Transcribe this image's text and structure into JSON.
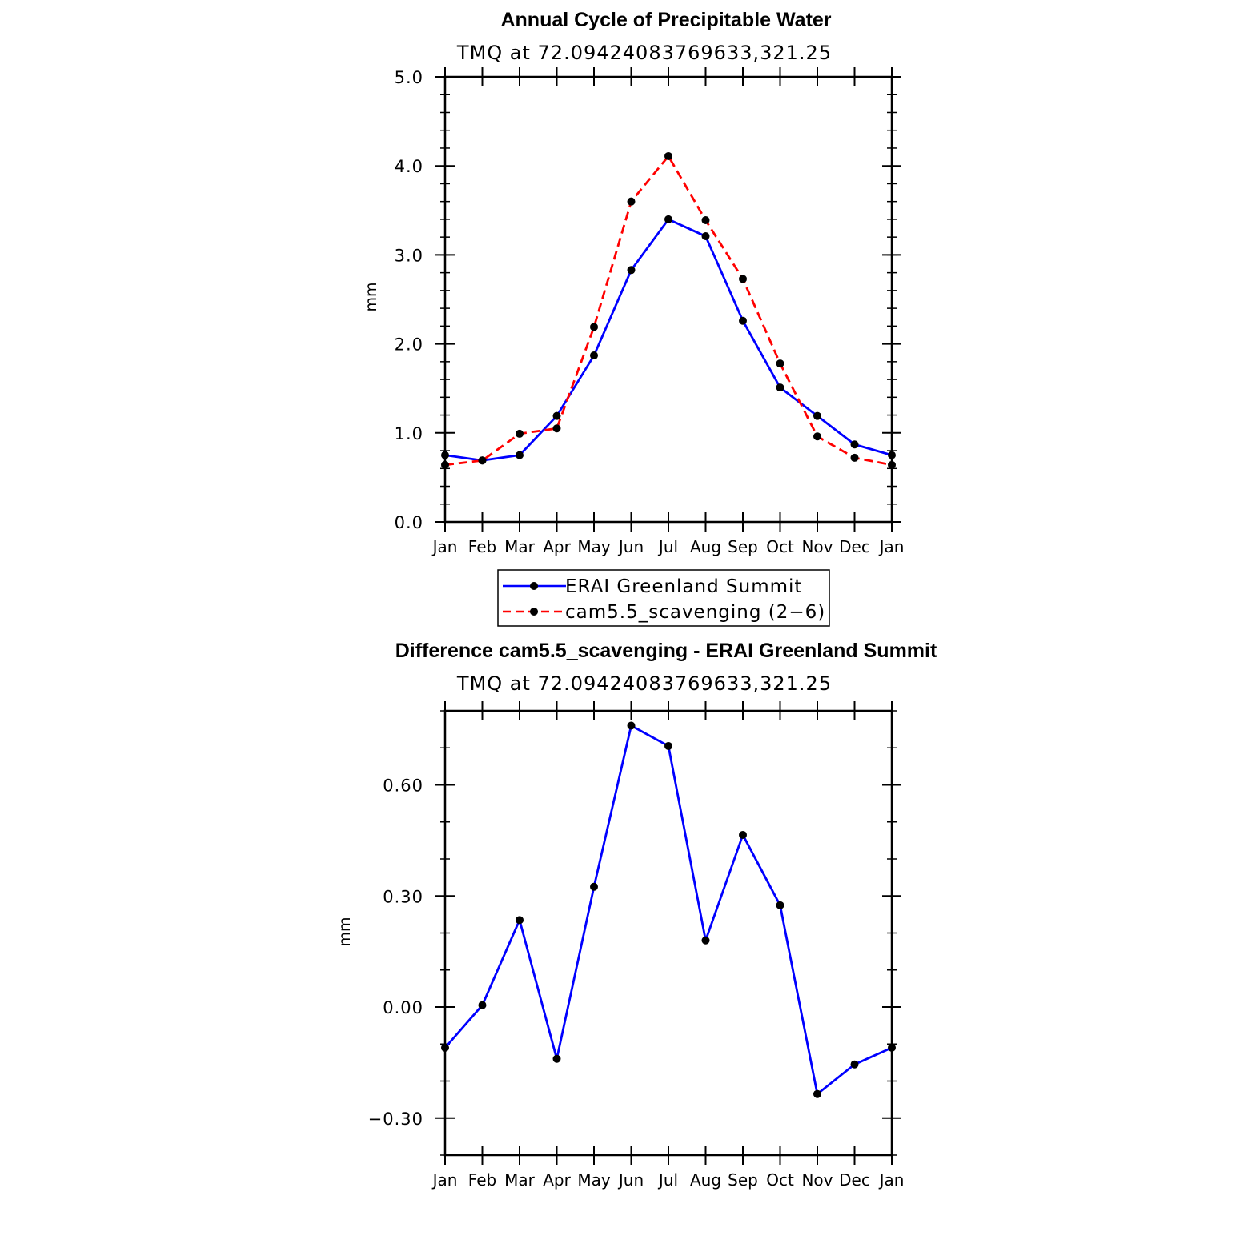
{
  "chart_data": [
    {
      "type": "line",
      "title": "Annual Cycle of Precipitable Water",
      "subtitle": "TMQ at 72.09424083769633,321.25",
      "xlabel": "",
      "ylabel": "mm",
      "categories": [
        "Jan",
        "Feb",
        "Mar",
        "Apr",
        "May",
        "Jun",
        "Jul",
        "Aug",
        "Sep",
        "Oct",
        "Nov",
        "Dec",
        "Jan"
      ],
      "ylim": [
        0,
        5
      ],
      "yticks": [
        "0.0",
        "1.0",
        "2.0",
        "3.0",
        "4.0",
        "5.0"
      ],
      "series": [
        {
          "name": "ERAI Greenland Summit",
          "color": "#0000ff",
          "style": "solid",
          "values": [
            0.75,
            0.69,
            0.75,
            1.19,
            1.87,
            2.83,
            3.4,
            3.21,
            2.26,
            1.51,
            1.19,
            0.87,
            0.75
          ]
        },
        {
          "name": "cam5.5_scavenging (2−6)",
          "color": "#ff0000",
          "style": "dashed",
          "values": [
            0.64,
            0.69,
            0.99,
            1.05,
            2.19,
            3.6,
            4.11,
            3.39,
            2.73,
            1.78,
            0.96,
            0.72,
            0.64
          ]
        }
      ],
      "legend": {
        "position": "below",
        "labels": [
          "ERAI Greenland Summit",
          "cam5.5_scavenging (2−6)"
        ]
      }
    },
    {
      "type": "line",
      "title": "Difference cam5.5_scavenging - ERAI Greenland Summit",
      "subtitle": "TMQ at 72.09424083769633,321.25",
      "xlabel": "",
      "ylabel": "mm",
      "categories": [
        "Jan",
        "Feb",
        "Mar",
        "Apr",
        "May",
        "Jun",
        "Jul",
        "Aug",
        "Sep",
        "Oct",
        "Nov",
        "Dec",
        "Jan"
      ],
      "ylim": [
        -0.4,
        0.8
      ],
      "yticks": [
        "−0.30",
        "0.00",
        "0.30",
        "0.60"
      ],
      "series": [
        {
          "name": "difference",
          "color": "#0000ff",
          "style": "solid",
          "values": [
            -0.11,
            0.005,
            0.235,
            -0.14,
            0.325,
            0.76,
            0.705,
            0.18,
            0.465,
            0.275,
            -0.235,
            -0.155,
            -0.11
          ]
        }
      ]
    }
  ]
}
